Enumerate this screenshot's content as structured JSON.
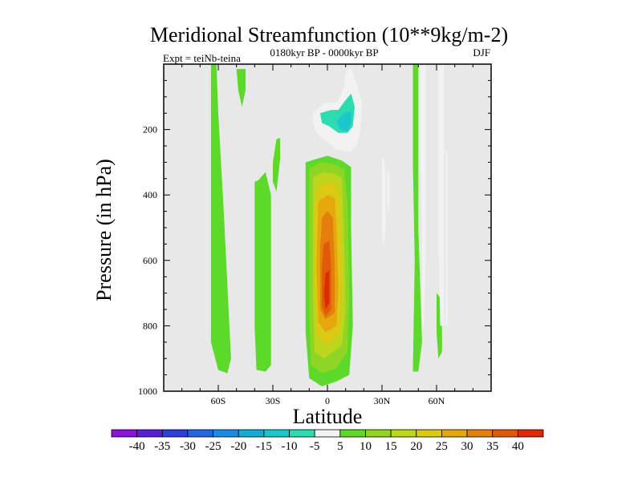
{
  "chart_data": {
    "type": "heatmap",
    "title": "Meridional Streamfunction (10**9kg/m-2)",
    "subtitle_left": "Expt = teiNb-teina",
    "subtitle_center": "0180kyr BP - 0000kyr BP",
    "subtitle_right": "DJF",
    "xlabel": "Latitude",
    "ylabel": "Pressure (in hPa)",
    "xlim": [
      -90,
      90
    ],
    "ylim": [
      1000,
      0
    ],
    "xticks": [
      {
        "value": -60,
        "label": "60S"
      },
      {
        "value": -30,
        "label": "30S"
      },
      {
        "value": 0,
        "label": "0"
      },
      {
        "value": 30,
        "label": "30N"
      },
      {
        "value": 60,
        "label": "60N"
      }
    ],
    "yticks": [
      {
        "value": 200,
        "label": "200"
      },
      {
        "value": 400,
        "label": "400"
      },
      {
        "value": 600,
        "label": "600"
      },
      {
        "value": 800,
        "label": "800"
      },
      {
        "value": 1000,
        "label": "1000"
      }
    ],
    "background_color": "#e8e8e8",
    "colorbar": {
      "levels": [
        -40,
        -35,
        -30,
        -25,
        -20,
        -15,
        -10,
        -5,
        5,
        10,
        15,
        20,
        25,
        30,
        35,
        40
      ],
      "colors": [
        "#8a11d8",
        "#5a1fd4",
        "#2a40d8",
        "#1f66e0",
        "#1c8be4",
        "#15aad8",
        "#19c7cc",
        "#2cdbb0",
        "#f2f2f2",
        "#5cd92a",
        "#8fd523",
        "#bcd51d",
        "#dcc914",
        "#e5a60e",
        "#e47e0c",
        "#e15a08",
        "#dd2b04"
      ]
    },
    "regions": [
      {
        "name": "positive-band-60S",
        "value": 5,
        "points": [
          [
            -64,
            0
          ],
          [
            -61,
            0
          ],
          [
            -60,
            150
          ],
          [
            -57,
            450
          ],
          [
            -53,
            900
          ],
          [
            -55,
            945
          ],
          [
            -60,
            935
          ],
          [
            -64,
            850
          ],
          [
            -64,
            400
          ]
        ]
      },
      {
        "name": "positive-band-50S",
        "value": 5,
        "points": [
          [
            -50,
            15
          ],
          [
            -45,
            15
          ],
          [
            -45,
            80
          ],
          [
            -47,
            130
          ],
          [
            -49,
            80
          ]
        ]
      },
      {
        "name": "positive-band-30S",
        "value": 5,
        "points": [
          [
            -40,
            360
          ],
          [
            -38,
            355
          ],
          [
            -34,
            330
          ],
          [
            -31,
            400
          ],
          [
            -31,
            700
          ],
          [
            -31,
            920
          ],
          [
            -34,
            940
          ],
          [
            -39,
            935
          ],
          [
            -40,
            800
          ],
          [
            -40,
            500
          ]
        ]
      },
      {
        "name": "positive-band-27S",
        "value": 5,
        "points": [
          [
            -30,
            300
          ],
          [
            -28,
            230
          ],
          [
            -26,
            225
          ],
          [
            -26,
            290
          ],
          [
            -28,
            390
          ],
          [
            -30,
            360
          ]
        ]
      },
      {
        "name": "eq-5-10",
        "value": 5,
        "points": [
          [
            -12,
            300
          ],
          [
            -6,
            290
          ],
          [
            0,
            280
          ],
          [
            8,
            295
          ],
          [
            13,
            315
          ],
          [
            13,
            500
          ],
          [
            14,
            800
          ],
          [
            12,
            950
          ],
          [
            5,
            970
          ],
          [
            -3,
            985
          ],
          [
            -10,
            960
          ],
          [
            -12,
            820
          ],
          [
            -12,
            500
          ]
        ]
      },
      {
        "name": "eq-10-15",
        "value": 10,
        "points": [
          [
            -10,
            320
          ],
          [
            -4,
            300
          ],
          [
            3,
            305
          ],
          [
            9,
            320
          ],
          [
            11,
            420
          ],
          [
            12,
            700
          ],
          [
            11,
            880
          ],
          [
            5,
            930
          ],
          [
            -3,
            945
          ],
          [
            -9,
            920
          ],
          [
            -10,
            750
          ],
          [
            -10,
            450
          ]
        ]
      },
      {
        "name": "eq-15-20",
        "value": 15,
        "points": [
          [
            -8,
            345
          ],
          [
            -2,
            330
          ],
          [
            4,
            335
          ],
          [
            8,
            350
          ],
          [
            9,
            500
          ],
          [
            10,
            750
          ],
          [
            8,
            860
          ],
          [
            -2,
            900
          ],
          [
            -7,
            880
          ],
          [
            -8,
            700
          ],
          [
            -8,
            450
          ]
        ]
      },
      {
        "name": "eq-20-25",
        "value": 20,
        "points": [
          [
            -6,
            380
          ],
          [
            0,
            360
          ],
          [
            5,
            365
          ],
          [
            7,
            430
          ],
          [
            8,
            650
          ],
          [
            7,
            820
          ],
          [
            0,
            860
          ],
          [
            -6,
            830
          ],
          [
            -7,
            650
          ],
          [
            -7,
            450
          ]
        ]
      },
      {
        "name": "eq-25-30",
        "value": 25,
        "points": [
          [
            -5,
            420
          ],
          [
            0,
            400
          ],
          [
            4,
            410
          ],
          [
            5,
            500
          ],
          [
            6,
            680
          ],
          [
            5,
            800
          ],
          [
            -1,
            820
          ],
          [
            -5,
            790
          ],
          [
            -6,
            620
          ]
        ]
      },
      {
        "name": "eq-30-35",
        "value": 30,
        "points": [
          [
            -3,
            470
          ],
          [
            0,
            450
          ],
          [
            3,
            470
          ],
          [
            4,
            620
          ],
          [
            4,
            760
          ],
          [
            -1,
            780
          ],
          [
            -4,
            750
          ],
          [
            -4,
            560
          ]
        ]
      },
      {
        "name": "eq-35-40",
        "value": 35,
        "points": [
          [
            -2,
            550
          ],
          [
            1,
            540
          ],
          [
            2,
            620
          ],
          [
            2,
            750
          ],
          [
            -1,
            770
          ],
          [
            -3,
            740
          ],
          [
            -3,
            620
          ]
        ]
      },
      {
        "name": "eq-core",
        "value": 40,
        "points": [
          [
            -1,
            640
          ],
          [
            1,
            630
          ],
          [
            1,
            730
          ],
          [
            -1,
            750
          ],
          [
            -2,
            700
          ]
        ]
      },
      {
        "name": "upper-neg-5",
        "value": -5,
        "points": [
          [
            -8,
            150
          ],
          [
            -2,
            120
          ],
          [
            6,
            115
          ],
          [
            9,
            70
          ],
          [
            10,
            25
          ],
          [
            13,
            10
          ],
          [
            16,
            60
          ],
          [
            19,
            120
          ],
          [
            18,
            200
          ],
          [
            16,
            250
          ],
          [
            12,
            270
          ],
          [
            5,
            260
          ],
          [
            -2,
            230
          ],
          [
            -6,
            210
          ],
          [
            -8,
            180
          ]
        ]
      },
      {
        "name": "upper-neg-10",
        "value": -10,
        "points": [
          [
            -4,
            150
          ],
          [
            2,
            140
          ],
          [
            6,
            140
          ],
          [
            10,
            110
          ],
          [
            13,
            90
          ],
          [
            15,
            130
          ],
          [
            14,
            190
          ],
          [
            11,
            210
          ],
          [
            6,
            210
          ],
          [
            1,
            190
          ],
          [
            -3,
            180
          ]
        ]
      },
      {
        "name": "upper-neg-15",
        "value": -15,
        "points": [
          [
            5,
            175
          ],
          [
            9,
            150
          ],
          [
            13,
            145
          ],
          [
            13,
            180
          ],
          [
            11,
            205
          ],
          [
            7,
            200
          ]
        ]
      },
      {
        "name": "negative-band-1",
        "value": -5,
        "points": [
          [
            30,
            290
          ],
          [
            31,
            280
          ],
          [
            32,
            330
          ],
          [
            32,
            500
          ],
          [
            31,
            560
          ],
          [
            30,
            520
          ],
          [
            30,
            400
          ]
        ]
      },
      {
        "name": "negative-band-2",
        "value": -5,
        "points": [
          [
            33,
            320
          ],
          [
            34,
            330
          ],
          [
            34,
            440
          ],
          [
            33,
            460
          ],
          [
            33,
            400
          ]
        ]
      },
      {
        "name": "positive-band-48N",
        "value": 5,
        "points": [
          [
            47,
            0
          ],
          [
            50,
            0
          ],
          [
            50,
            500
          ],
          [
            52,
            850
          ],
          [
            50,
            940
          ],
          [
            47,
            940
          ],
          [
            48,
            600
          ],
          [
            47,
            300
          ]
        ]
      },
      {
        "name": "negative-band-53N",
        "value": -5,
        "points": [
          [
            51,
            0
          ],
          [
            54,
            0
          ],
          [
            54,
            300
          ],
          [
            54,
            600
          ],
          [
            53,
            800
          ],
          [
            52,
            820
          ],
          [
            52,
            500
          ],
          [
            51,
            250
          ]
        ]
      },
      {
        "name": "positive-band-62N",
        "value": 5,
        "points": [
          [
            60,
            700
          ],
          [
            63,
            720
          ],
          [
            63,
            880
          ],
          [
            61,
            900
          ],
          [
            60,
            820
          ]
        ]
      },
      {
        "name": "negative-band-63N",
        "value": -5,
        "points": [
          [
            61,
            0
          ],
          [
            64,
            0
          ],
          [
            64,
            400
          ],
          [
            64,
            800
          ],
          [
            62,
            800
          ],
          [
            61,
            500
          ]
        ]
      },
      {
        "name": "negative-band-67N",
        "value": -5,
        "points": [
          [
            65,
            270
          ],
          [
            66,
            270
          ],
          [
            66,
            800
          ],
          [
            65,
            800
          ]
        ]
      }
    ]
  }
}
